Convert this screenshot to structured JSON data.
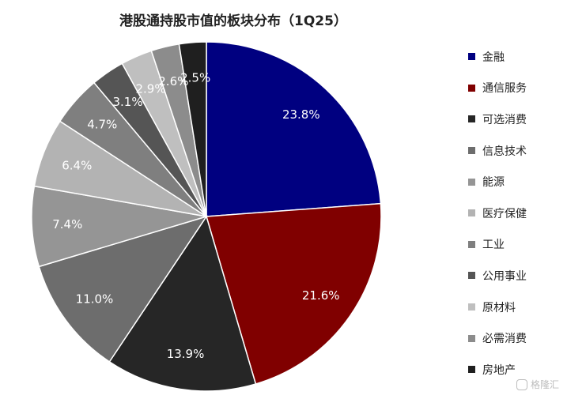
{
  "chart_data": {
    "type": "pie",
    "title": "港股通持股市值的板块分布（1Q25）",
    "legend_position": "right",
    "slices": [
      {
        "label": "金融",
        "value": 23.8,
        "display": "23.8%",
        "color": "#000080"
      },
      {
        "label": "通信服务",
        "value": 21.6,
        "display": "21.6%",
        "color": "#800000"
      },
      {
        "label": "可选消费",
        "value": 13.9,
        "display": "13.9%",
        "color": "#262626"
      },
      {
        "label": "信息技术",
        "value": 11.0,
        "display": "11.0%",
        "color": "#6d6d6d"
      },
      {
        "label": "能源",
        "value": 7.4,
        "display": "7.4%",
        "color": "#959595"
      },
      {
        "label": "医疗保健",
        "value": 6.4,
        "display": "6.4%",
        "color": "#b3b3b3"
      },
      {
        "label": "工业",
        "value": 4.7,
        "display": "4.7%",
        "color": "#7f7f7f"
      },
      {
        "label": "公用事业",
        "value": 3.1,
        "display": "3.1%",
        "color": "#555555"
      },
      {
        "label": "原材料",
        "value": 2.9,
        "display": "2.9%",
        "color": "#bfbfbf"
      },
      {
        "label": "必需消费",
        "value": 2.6,
        "display": "2.6%",
        "color": "#8c8c8c"
      },
      {
        "label": "房地产",
        "value": 2.5,
        "display": "2.5%",
        "color": "#1f1f1f"
      }
    ]
  },
  "watermark": {
    "text": "格隆汇",
    "icon": "gelonghui-logo-icon"
  }
}
